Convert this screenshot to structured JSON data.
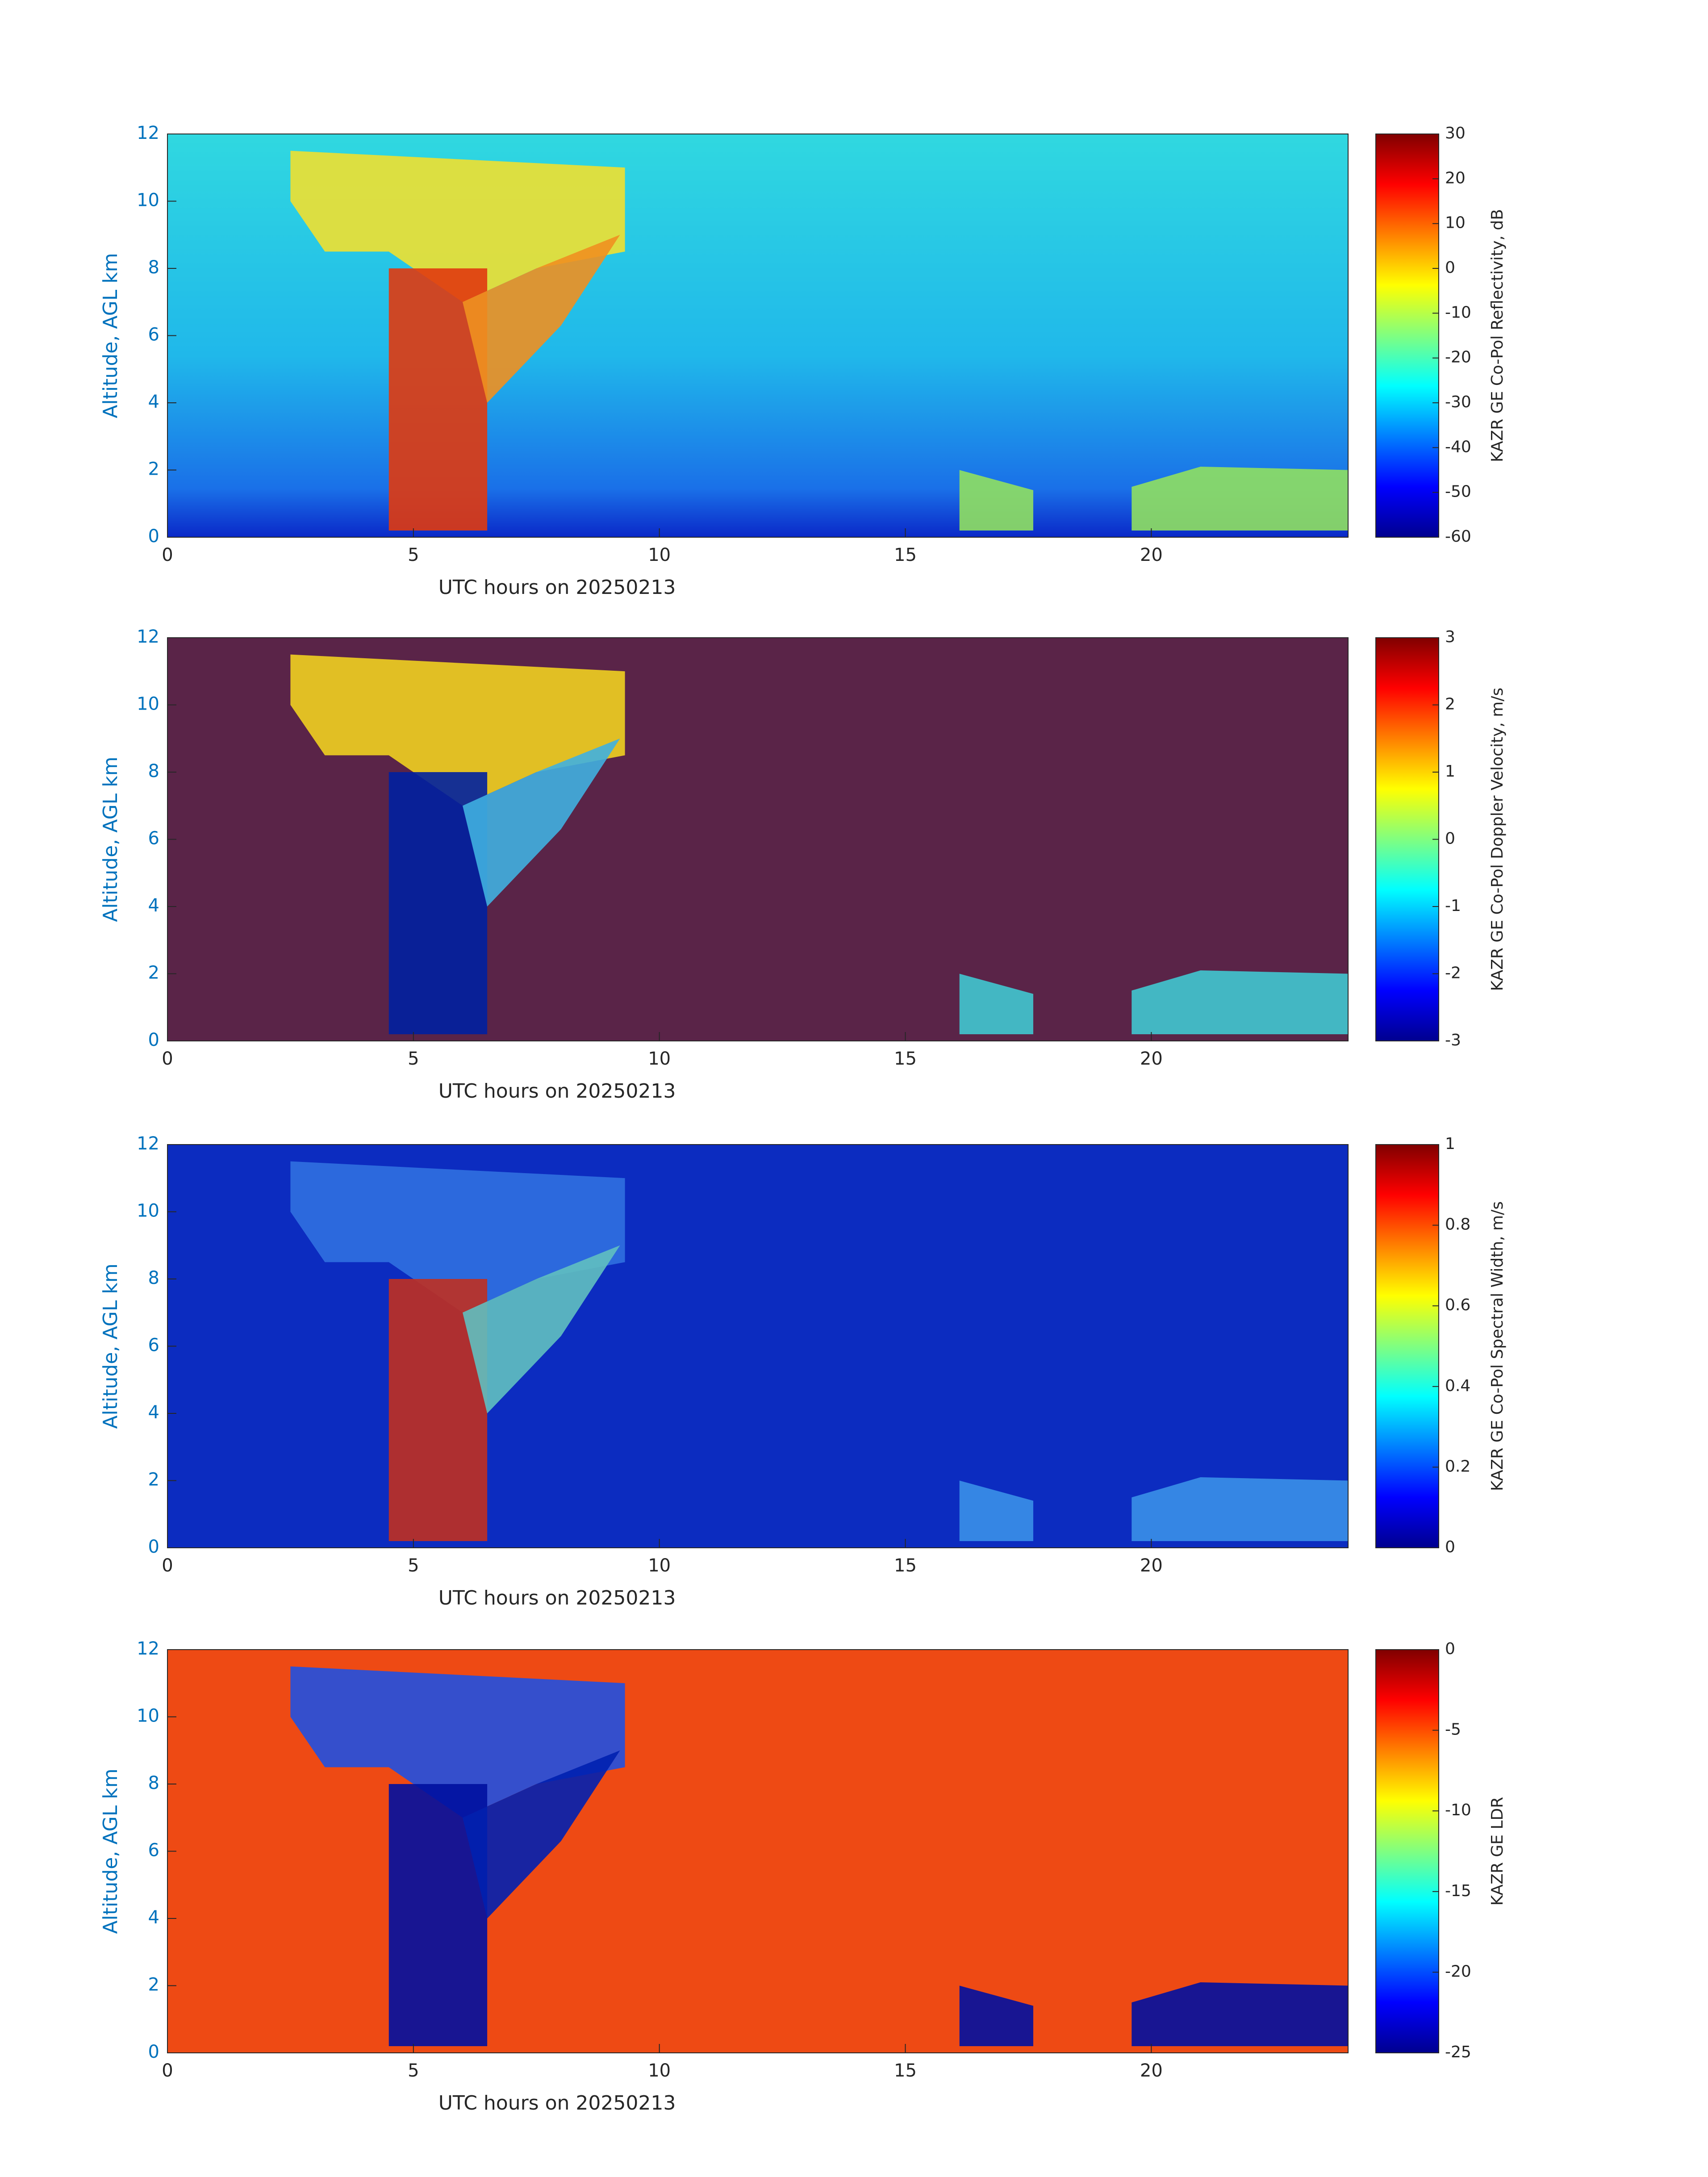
{
  "chart_data": [
    {
      "type": "heatmap",
      "xlabel": "UTC hours on 20250213",
      "ylabel": "Altitude, AGL km",
      "xlim": [
        0,
        24
      ],
      "xticks": [
        0,
        5,
        10,
        15,
        20
      ],
      "ylim": [
        0,
        12
      ],
      "yticks": [
        0,
        2,
        4,
        6,
        8,
        10,
        12
      ],
      "colormap": "jet",
      "colorbar_label": "KAZR GE Co-Pol Reflectivity, dB",
      "clim": [
        -60,
        30
      ],
      "cticks": [
        -60,
        -50,
        -40,
        -30,
        -20,
        -10,
        0,
        10,
        20,
        30
      ]
    },
    {
      "type": "heatmap",
      "xlabel": "UTC hours on 20250213",
      "ylabel": "Altitude, AGL km",
      "xlim": [
        0,
        24
      ],
      "xticks": [
        0,
        5,
        10,
        15,
        20
      ],
      "ylim": [
        0,
        12
      ],
      "yticks": [
        0,
        2,
        4,
        6,
        8,
        10,
        12
      ],
      "colormap": "jet",
      "colorbar_label": "KAZR GE Co-Pol Doppler Velocity, m/s",
      "clim": [
        -3,
        3
      ],
      "cticks": [
        -3,
        -2,
        -1,
        0,
        1,
        2,
        3
      ]
    },
    {
      "type": "heatmap",
      "xlabel": "UTC hours on 20250213",
      "ylabel": "Altitude, AGL km",
      "xlim": [
        0,
        24
      ],
      "xticks": [
        0,
        5,
        10,
        15,
        20
      ],
      "ylim": [
        0,
        12
      ],
      "yticks": [
        0,
        2,
        4,
        6,
        8,
        10,
        12
      ],
      "colormap": "jet",
      "colorbar_label": "KAZR GE Co-Pol Spectral Width, m/s",
      "clim": [
        0,
        1
      ],
      "cticks": [
        0,
        0.2,
        0.4,
        0.6,
        0.8,
        1
      ]
    },
    {
      "type": "heatmap",
      "xlabel": "UTC hours on 20250213",
      "ylabel": "Altitude, AGL km",
      "xlim": [
        0,
        24
      ],
      "xticks": [
        0,
        5,
        10,
        15,
        20
      ],
      "ylim": [
        0,
        12
      ],
      "yticks": [
        0,
        2,
        4,
        6,
        8,
        10,
        12
      ],
      "colormap": "jet",
      "colorbar_label": "KAZR GE LDR",
      "clim": [
        -25,
        0
      ],
      "cticks": [
        -25,
        -20,
        -15,
        -10,
        -5,
        0
      ]
    }
  ]
}
